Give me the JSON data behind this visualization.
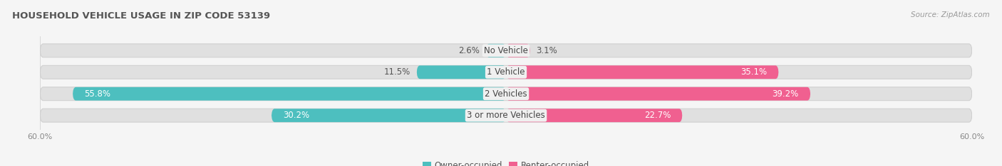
{
  "title": "HOUSEHOLD VEHICLE USAGE IN ZIP CODE 53139",
  "source": "Source: ZipAtlas.com",
  "categories": [
    "No Vehicle",
    "1 Vehicle",
    "2 Vehicles",
    "3 or more Vehicles"
  ],
  "owner_values": [
    2.6,
    11.5,
    55.8,
    30.2
  ],
  "renter_values": [
    3.1,
    35.1,
    39.2,
    22.7
  ],
  "owner_color": "#4dbfbf",
  "renter_color": "#f06090",
  "background_color": "#f5f5f5",
  "bar_background": "#e0e0e0",
  "bar_bg_edge": "#d0d0d0",
  "axis_limit": 60.0,
  "bar_height": 0.62,
  "label_fontsize": 8.5,
  "title_fontsize": 9.5,
  "source_fontsize": 7.5,
  "legend_fontsize": 8.5,
  "tick_fontsize": 8,
  "figsize": [
    14.06,
    2.34
  ],
  "dpi": 100,
  "center_label_bg": "#f0f0f0"
}
